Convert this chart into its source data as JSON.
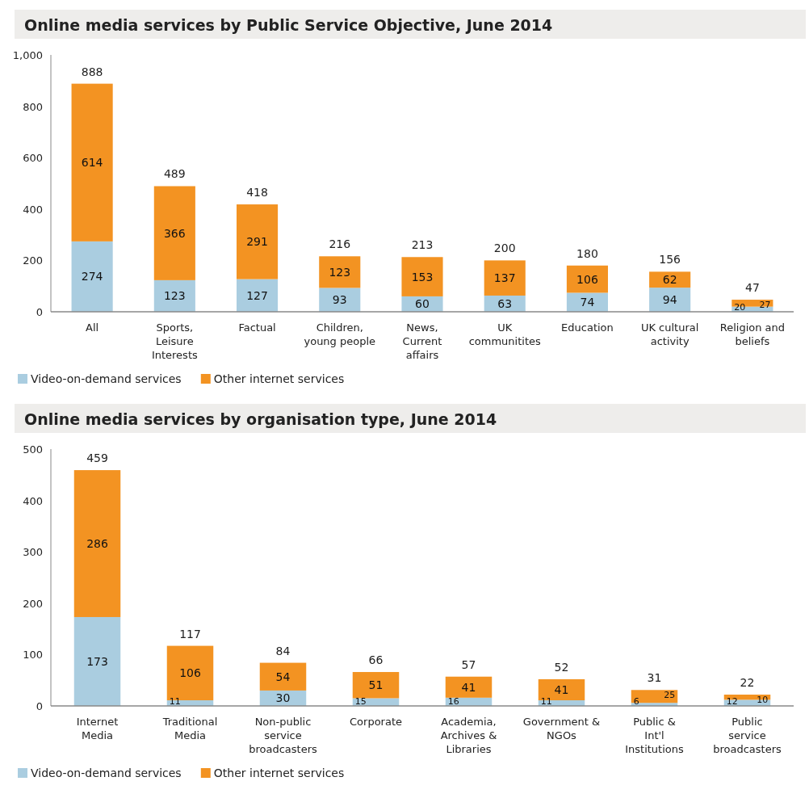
{
  "chart_data": [
    {
      "type": "bar",
      "title": "Online media services by Public Service Objective, June 2014",
      "categories": [
        "All",
        "Sports, Leisure Interests",
        "Factual",
        "Children, young people",
        "News, Current affairs",
        "UK communitites",
        "Education",
        "UK cultural activity",
        "Religion and beliefs"
      ],
      "stacked": true,
      "series": [
        {
          "name": "Video-on-demand services",
          "color": "#aacde0",
          "values": [
            274,
            123,
            127,
            93,
            60,
            63,
            74,
            94,
            20
          ]
        },
        {
          "name": "Other internet services",
          "color": "#f39322",
          "values": [
            614,
            366,
            291,
            123,
            153,
            137,
            106,
            62,
            27
          ]
        }
      ],
      "totals": [
        "888",
        "489",
        "418",
        "216",
        "213",
        "200",
        "180",
        "156",
        "47"
      ],
      "data_labels": true,
      "ylim": [
        0,
        1000
      ],
      "yticks": [
        0,
        200,
        400,
        600,
        800,
        {
          "value": 1000,
          "label": "1,000"
        }
      ],
      "legend": "bottom",
      "grid": false
    },
    {
      "type": "bar",
      "title": "Online media services by organisation type, June 2014",
      "categories": [
        "Internet Media",
        "Traditional Media",
        "Non-public service broadcasters",
        "Corporate",
        "Academia, Archives & Libraries",
        "Government & NGOs",
        "Public & Int'l Institutions",
        "Public service broadcasters"
      ],
      "stacked": true,
      "series": [
        {
          "name": "Video-on-demand services",
          "color": "#aacde0",
          "values": [
            173,
            11,
            30,
            15,
            16,
            11,
            6,
            12
          ]
        },
        {
          "name": "Other internet services",
          "color": "#f39322",
          "values": [
            286,
            106,
            54,
            51,
            41,
            41,
            25,
            10
          ]
        }
      ],
      "totals": [
        "459",
        "117",
        "84",
        "66",
        "57",
        "52",
        "31",
        "22"
      ],
      "data_labels": true,
      "ylim": [
        0,
        500
      ],
      "yticks": [
        0,
        100,
        200,
        300,
        400,
        500
      ],
      "legend": "bottom",
      "grid": false
    }
  ]
}
